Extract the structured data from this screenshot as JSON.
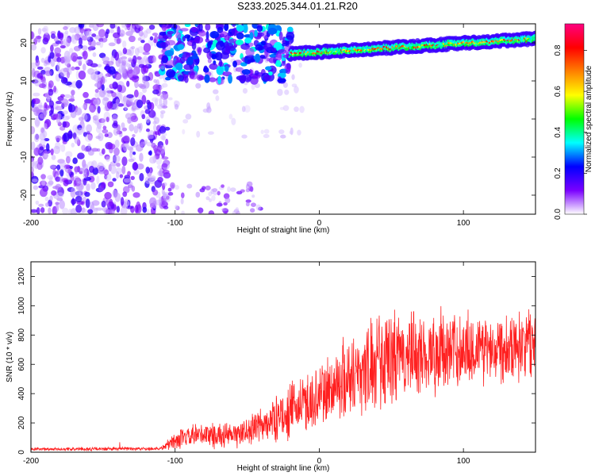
{
  "title": "S233.2025.344.01.21.R20",
  "chart_data": [
    {
      "type": "heatmap",
      "name": "spectrogram",
      "xlabel": "Height of straight line (km)",
      "ylabel": "Frequency (Hz)",
      "xlim": [
        -200,
        150
      ],
      "ylim": [
        -25,
        25
      ],
      "xticks": [
        -200,
        -100,
        0,
        100
      ],
      "yticks": [
        -20,
        -10,
        0,
        10,
        20
      ],
      "colorbar": {
        "label": "Normalized spectral amplitude",
        "range": [
          0,
          0.93
        ],
        "ticks": [
          "0.0",
          "0.2",
          "0.4",
          "0.6",
          "0.8"
        ],
        "tick_values": [
          0.0,
          0.2,
          0.4,
          0.6,
          0.8
        ],
        "colors": [
          "#ffffff",
          "#7a00ff",
          "#0000ff",
          "#00ffff",
          "#00ff00",
          "#ffff00",
          "#ff8000",
          "#ff0000",
          "#ff0080"
        ]
      },
      "description_points": {
        "ridge_frequency_start_hz": 17,
        "ridge_frequency_end_hz": 21,
        "ridge_start_km": -20,
        "ridge_end_km": 150,
        "noise_region_km": [
          -200,
          -105
        ],
        "transition_region_km": [
          -105,
          -20
        ]
      }
    },
    {
      "type": "line",
      "name": "snr",
      "xlabel": "Height of straight line (km)",
      "ylabel": "SNR (10 * v/v)",
      "xlim": [
        -200,
        150
      ],
      "ylim": [
        0,
        1300
      ],
      "xticks": [
        -200,
        -100,
        0,
        100
      ],
      "yticks": [
        0,
        200,
        400,
        600,
        800,
        1000,
        1200
      ],
      "color": "#ff2020",
      "envelope_x": [
        -200,
        -150,
        -110,
        -100,
        -80,
        -60,
        -40,
        -20,
        0,
        20,
        40,
        60,
        80,
        100,
        120,
        150
      ],
      "envelope_mean": [
        20,
        22,
        25,
        80,
        120,
        110,
        180,
        280,
        380,
        520,
        600,
        650,
        680,
        700,
        720,
        760
      ],
      "envelope_spread": [
        10,
        12,
        12,
        60,
        90,
        80,
        120,
        180,
        220,
        280,
        320,
        300,
        280,
        260,
        240,
        230
      ]
    }
  ]
}
